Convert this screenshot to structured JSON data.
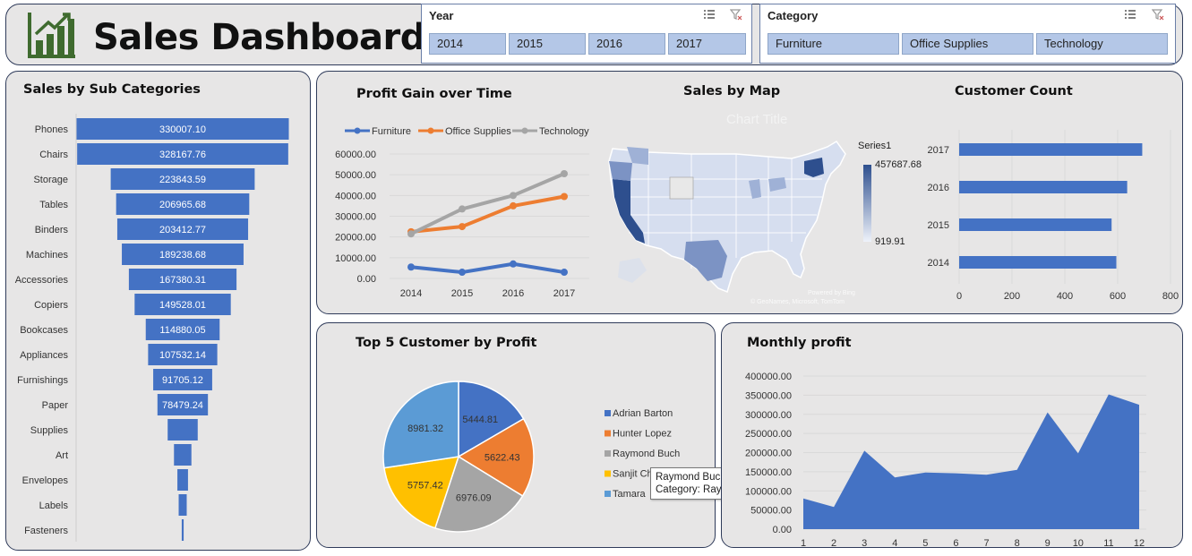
{
  "header": {
    "title": "Sales Dashboard",
    "logo_icon": "bar-chart-growth-icon"
  },
  "slicers": {
    "year": {
      "title": "Year",
      "options": [
        "2014",
        "2015",
        "2016",
        "2017"
      ]
    },
    "category": {
      "title": "Category",
      "options": [
        "Furniture",
        "Office Supplies",
        "Technology"
      ]
    }
  },
  "subcategory_panel": {
    "title": "Sales by Sub Categories"
  },
  "profit_panel": {
    "title": "Profit Gain over Time"
  },
  "map_panel": {
    "title": "Sales by Map",
    "ghost_title": "Chart Title",
    "legend_title": "Series1",
    "legend_max": "457687.68",
    "legend_min": "919.91",
    "credit1": "Powered by Bing",
    "credit2": "© GeoNames, Microsoft, TomTom"
  },
  "customer_count_panel": {
    "title": "Customer Count"
  },
  "top5_panel": {
    "title": "Top 5 Customer by Profit"
  },
  "monthly_panel": {
    "title": "Monthly profit"
  },
  "tooltip": {
    "line1": "Raymond Buch (Customer Name)",
    "line2": "Category: Raymond Buch"
  },
  "chart_data": [
    {
      "type": "bar",
      "title": "Sales by Sub Categories",
      "categories": [
        "Phones",
        "Chairs",
        "Storage",
        "Tables",
        "Binders",
        "Machines",
        "Accessories",
        "Copiers",
        "Bookcases",
        "Appliances",
        "Furnishings",
        "Paper",
        "Supplies",
        "Art",
        "Envelopes",
        "Labels",
        "Fasteners"
      ],
      "values": [
        330007.1,
        328167.76,
        223843.59,
        206965.68,
        203412.77,
        189238.68,
        167380.31,
        149528.01,
        114880.05,
        107532.14,
        91705.12,
        78479.24,
        46700,
        27100,
        16500,
        12500,
        3000
      ],
      "labels": [
        "330007.10",
        "328167.76",
        "223843.59",
        "206965.68",
        "203412.77",
        "189238.68",
        "167380.31",
        "149528.01",
        "114880.05",
        "107532.14",
        "91705.12",
        "78479.24",
        "",
        "",
        "",
        "",
        ""
      ],
      "color": "#4472c4"
    },
    {
      "type": "line",
      "title": "Profit Gain over Time",
      "x": [
        "2014",
        "2015",
        "2016",
        "2017"
      ],
      "ylim": [
        0,
        60000
      ],
      "yticks": [
        "0.00",
        "10000.00",
        "20000.00",
        "30000.00",
        "40000.00",
        "50000.00",
        "60000.00"
      ],
      "series": [
        {
          "name": "Furniture",
          "color": "#4472c4",
          "values": [
            5500,
            3000,
            7000,
            3000
          ]
        },
        {
          "name": "Office Supplies",
          "color": "#ed7d31",
          "values": [
            22500,
            25000,
            35000,
            39500
          ]
        },
        {
          "name": "Technology",
          "color": "#a5a5a5",
          "values": [
            21500,
            33500,
            40000,
            50500
          ]
        }
      ]
    },
    {
      "type": "bar",
      "title": "Customer Count",
      "categories": [
        "2017",
        "2016",
        "2015",
        "2014"
      ],
      "values": [
        693,
        636,
        577,
        595
      ],
      "xlim": [
        0,
        800
      ],
      "xticks": [
        "0",
        "200",
        "400",
        "600",
        "800"
      ],
      "color": "#4472c4"
    },
    {
      "type": "pie",
      "title": "Top 5 Customer by Profit",
      "series": [
        {
          "name": "Adrian Barton",
          "value": 5444.81,
          "label": "5444.81",
          "color": "#4472c4"
        },
        {
          "name": "Hunter Lopez",
          "value": 5622.43,
          "label": "5622.43",
          "color": "#ed7d31"
        },
        {
          "name": "Raymond Buch",
          "value": 6976.09,
          "label": "6976.09",
          "color": "#a5a5a5"
        },
        {
          "name": "Sanjit Chand",
          "value": 5757.42,
          "label": "5757.42",
          "color": "#ffc000"
        },
        {
          "name": "Tamara Chand",
          "value": 8981.32,
          "label": "8981.32",
          "color": "#5b9bd5"
        }
      ],
      "legend": [
        "Adrian Barton",
        "Hunter Lopez",
        "Raymond Buch",
        "Sanjit Ch",
        "Tamara"
      ]
    },
    {
      "type": "area",
      "title": "Monthly profit",
      "x": [
        "1",
        "2",
        "3",
        "4",
        "5",
        "6",
        "7",
        "8",
        "9",
        "10",
        "11",
        "12"
      ],
      "values": [
        80000,
        58000,
        205000,
        135000,
        148000,
        146000,
        142000,
        155000,
        305000,
        198000,
        352000,
        325000
      ],
      "ylim": [
        0,
        400000
      ],
      "yticks": [
        "0.00",
        "50000.00",
        "100000.00",
        "150000.00",
        "200000.00",
        "250000.00",
        "300000.00",
        "350000.00",
        "400000.00"
      ],
      "color": "#4472c4"
    }
  ]
}
